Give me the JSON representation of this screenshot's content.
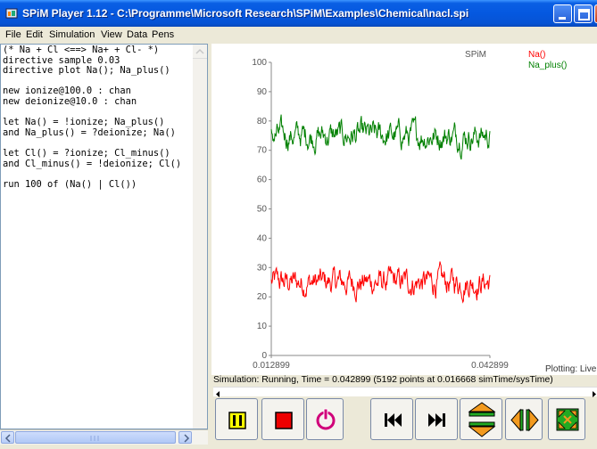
{
  "window": {
    "title": "SPiM Player 1.12 - C:\\Programme\\Microsoft Research\\SPiM\\Examples\\Chemical\\nacl.spi"
  },
  "menu": {
    "file": "File",
    "edit": "Edit",
    "simulation": "Simulation",
    "view": "View",
    "data": "Data",
    "pens": "Pens"
  },
  "editor": {
    "lines": [
      "(* Na + Cl <==> Na+ + Cl- *)",
      "directive sample 0.03",
      "directive plot Na(); Na_plus()",
      "",
      "new ionize@100.0 : chan",
      "new deionize@10.0 : chan",
      "",
      "let Na() = !ionize; Na_plus()",
      "and Na_plus() = ?deionize; Na()",
      "",
      "let Cl() = ?ionize; Cl_minus()",
      "and Cl_minus() = !deionize; Cl()",
      "",
      "run 100 of (Na() | Cl())"
    ]
  },
  "plot": {
    "header": "SPiM",
    "plotting_label": "Plotting: Live",
    "status": "Simulation: Running, Time = 0.042899 (5192 points at 0.016668 simTime/sysTime)",
    "colors": {
      "na": "#ff0000",
      "na_plus": "#008000"
    }
  },
  "chart_data": {
    "type": "line",
    "title": "SPiM",
    "xlabel": "",
    "ylabel": "",
    "xlim": [
      0.012899,
      0.042899
    ],
    "ylim": [
      0,
      100
    ],
    "x_ticks": [
      "0.012899",
      "0.042899"
    ],
    "y_ticks": [
      "0",
      "10",
      "20",
      "30",
      "40",
      "50",
      "60",
      "70",
      "80",
      "90",
      "100"
    ],
    "legend_position": "top-right",
    "series": [
      {
        "name": "Na()",
        "color": "#ff0000",
        "mean": 25,
        "min": 16,
        "max": 34
      },
      {
        "name": "Na_plus()",
        "color": "#008000",
        "mean": 75,
        "min": 66,
        "max": 84
      }
    ]
  },
  "toolbar": {
    "icons": [
      "pause-icon",
      "stop-icon",
      "power-icon",
      "rewind-icon",
      "fast-forward-icon",
      "expand-vertical-icon",
      "expand-horizontal-icon",
      "fullscreen-icon"
    ]
  }
}
